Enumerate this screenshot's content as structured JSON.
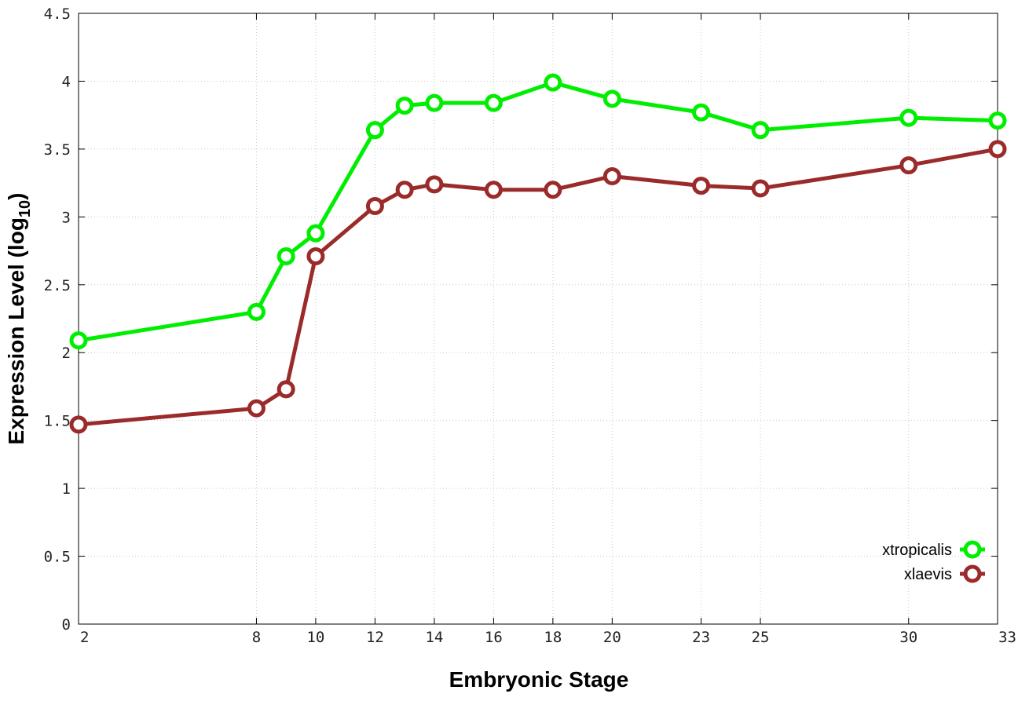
{
  "chart_data": {
    "type": "line",
    "xlabel": "Embryonic Stage",
    "ylabel": "Expression Level (log",
    "ylabel_subscript": "10",
    "ylabel_close": ")",
    "x_ticks": [
      2,
      8,
      10,
      12,
      14,
      16,
      18,
      20,
      23,
      25,
      30,
      33
    ],
    "y_ticks": [
      "0",
      "0.5",
      "1",
      "1.5",
      "2",
      "2.5",
      "3",
      "3.5",
      "4",
      "4.5"
    ],
    "xlim": [
      2,
      33
    ],
    "ylim": [
      0,
      4.5
    ],
    "grid": true,
    "legend_position": "bottom-right",
    "x": [
      2,
      8,
      9,
      10,
      12,
      13,
      14,
      16,
      18,
      20,
      23,
      25,
      30,
      33
    ],
    "series": [
      {
        "name": "xtropicalis",
        "color": "#00ee00",
        "values": [
          2.09,
          2.3,
          2.71,
          2.88,
          3.64,
          3.82,
          3.84,
          3.84,
          3.99,
          3.87,
          3.77,
          3.64,
          3.73,
          3.71
        ]
      },
      {
        "name": "xlaevis",
        "color": "#9b2b2b",
        "values": [
          1.47,
          1.59,
          1.73,
          2.71,
          3.08,
          3.2,
          3.24,
          3.2,
          3.2,
          3.3,
          3.23,
          3.21,
          3.38,
          3.5
        ]
      }
    ]
  }
}
